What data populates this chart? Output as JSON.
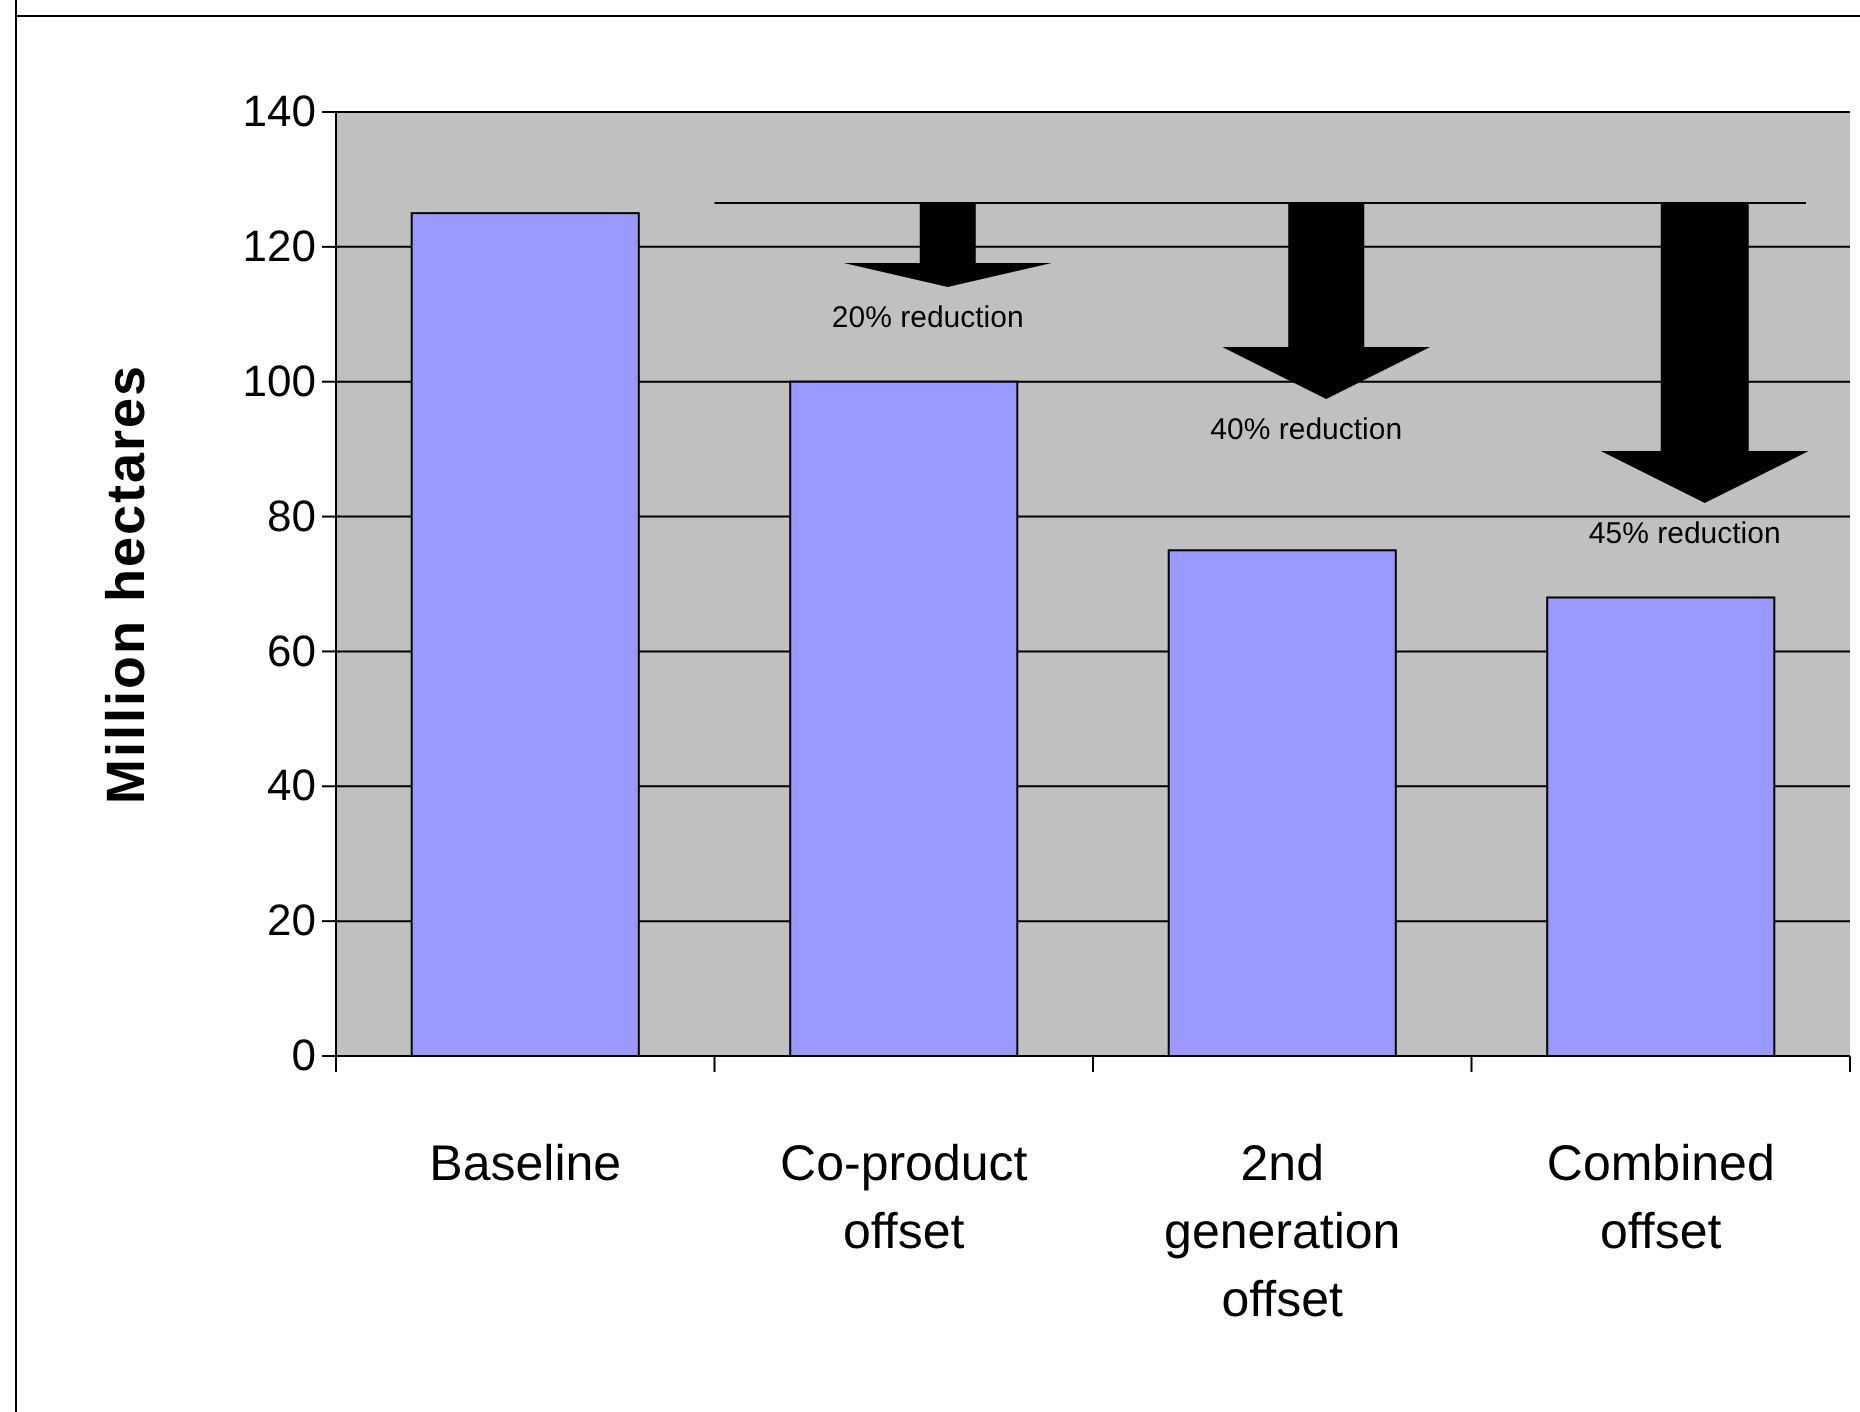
{
  "chart_data": {
    "type": "bar",
    "ylabel": "Million hectares",
    "categories": [
      "Baseline",
      "Co-product offset",
      "2nd generation offset",
      "Combined offset"
    ],
    "values": [
      125,
      100,
      75,
      68
    ],
    "color": "#9999ff",
    "ylim": [
      0,
      140
    ],
    "yticks": [
      0,
      20,
      40,
      60,
      80,
      100,
      120,
      140
    ],
    "grid": "y",
    "ref_lines": [
      {
        "axis": "y",
        "value": 126.5,
        "color": "#000000"
      }
    ],
    "annotations": [
      "20% reduction",
      "40% reduction",
      "45% reduction"
    ]
  }
}
